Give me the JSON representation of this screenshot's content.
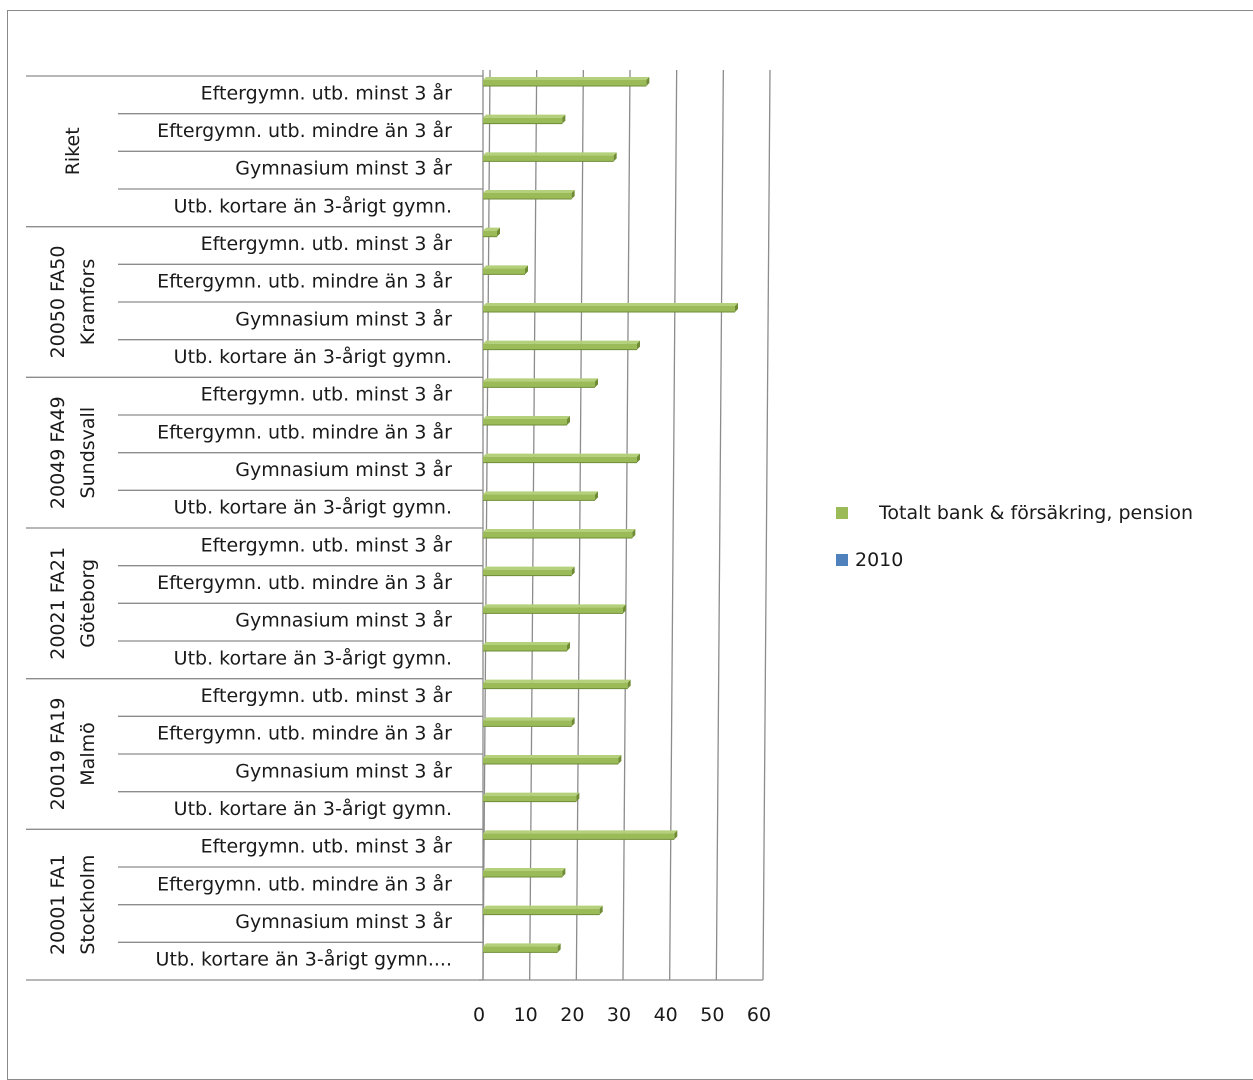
{
  "chart_data": {
    "type": "bar",
    "orientation": "horizontal",
    "title": "",
    "xlabel": "",
    "ylabel": "",
    "xlim": [
      0,
      60
    ],
    "x_ticks": [
      "0",
      "10",
      "20",
      "30",
      "40",
      "50",
      "60"
    ],
    "grid": true,
    "legend_position": "right",
    "legend": [
      {
        "name": "Totalt bank & försäkring, pension",
        "color": "#9bbb59"
      },
      {
        "name": "2010",
        "color": "#4f81bd"
      }
    ],
    "groups": [
      {
        "label_lines": [
          "Riket"
        ],
        "categories": [
          "Eftergymn. utb. minst 3 år",
          "Eftergymn. utb. mindre än 3 år",
          "Gymnasium minst 3 år",
          "Utb. kortare än 3-årigt gymn."
        ],
        "values": [
          35,
          17,
          28,
          19
        ]
      },
      {
        "label_lines": [
          "20050 FA50",
          "Kramfors"
        ],
        "categories": [
          "Eftergymn. utb. minst 3 år",
          "Eftergymn. utb. mindre än 3 år",
          "Gymnasium minst 3 år",
          "Utb. kortare än 3-årigt gymn."
        ],
        "values": [
          3,
          9,
          54,
          33
        ]
      },
      {
        "label_lines": [
          "20049 FA49",
          "Sundsvall"
        ],
        "categories": [
          "Eftergymn. utb. minst 3 år",
          "Eftergymn. utb. mindre än 3 år",
          "Gymnasium minst 3 år",
          "Utb. kortare än 3-årigt gymn."
        ],
        "values": [
          24,
          18,
          33,
          24
        ]
      },
      {
        "label_lines": [
          "20021 FA21",
          "Göteborg"
        ],
        "categories": [
          "Eftergymn. utb. minst 3 år",
          "Eftergymn. utb. mindre än 3 år",
          "Gymnasium minst 3 år",
          "Utb. kortare än 3-årigt gymn."
        ],
        "values": [
          32,
          19,
          30,
          18
        ]
      },
      {
        "label_lines": [
          "20019 FA19",
          "Malmö"
        ],
        "categories": [
          "Eftergymn. utb. minst 3 år",
          "Eftergymn. utb. mindre än 3 år",
          "Gymnasium minst 3 år",
          "Utb. kortare än 3-årigt gymn."
        ],
        "values": [
          31,
          19,
          29,
          20
        ]
      },
      {
        "label_lines": [
          "20001 FA1",
          "Stockholm"
        ],
        "categories": [
          "Eftergymn. utb. minst 3 år",
          "Eftergymn. utb. mindre än 3 år",
          "Gymnasium minst 3 år",
          "Utb. kortare än 3-årigt gymn...."
        ],
        "values": [
          41,
          17,
          25,
          16
        ]
      }
    ]
  }
}
